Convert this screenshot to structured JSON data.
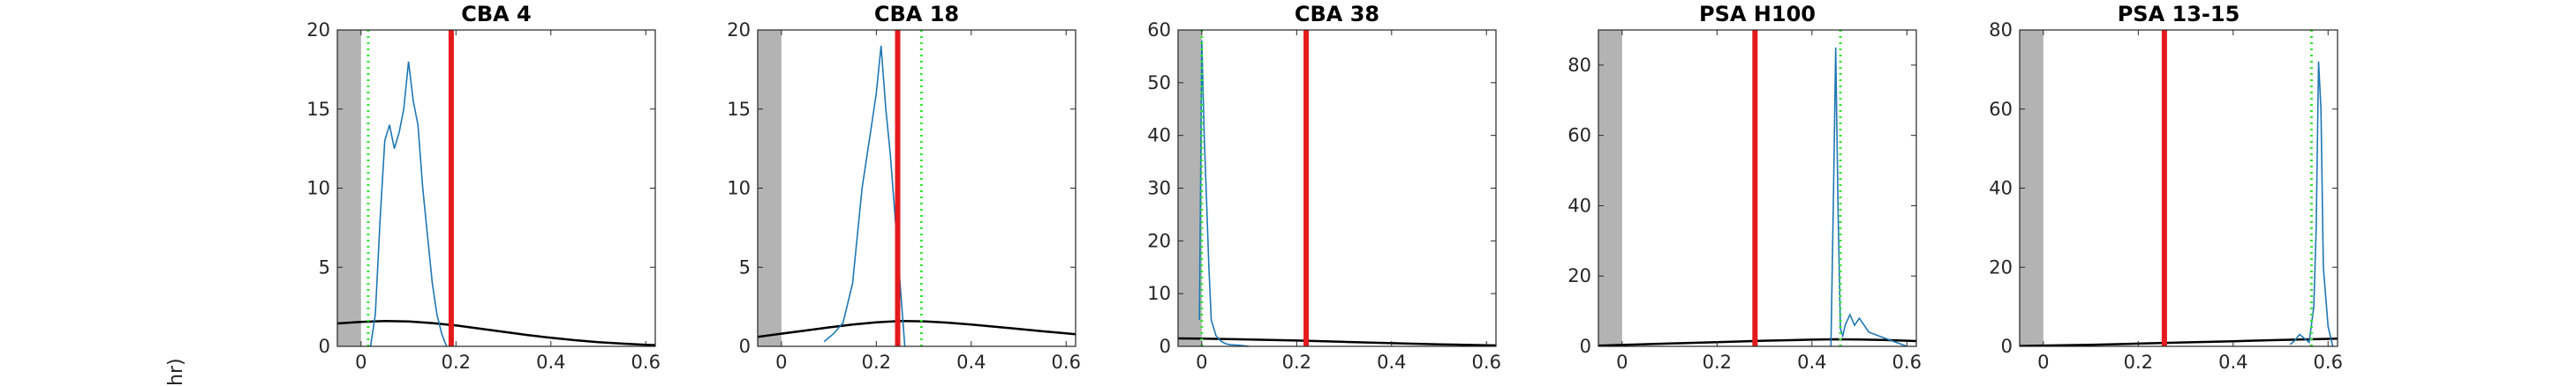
{
  "figure": {
    "ylabel": "hr)"
  },
  "chart_data": [
    {
      "type": "line",
      "title": "CBA 4",
      "xlim": [
        -0.05,
        0.62
      ],
      "ylim": [
        0,
        20
      ],
      "xticks": [
        0,
        0.2,
        0.4,
        0.6
      ],
      "xtick_labels": [
        "0",
        "0.2",
        "0.4",
        "0.6"
      ],
      "yticks": [
        0,
        5,
        10,
        15,
        20
      ],
      "ytick_labels": [
        "0",
        "5",
        "10",
        "15",
        "20"
      ],
      "shaded_region": [
        -0.05,
        0
      ],
      "red_line_x": 0.19,
      "dotted_line_x": 0.015,
      "colors": {
        "histogram": "#1f77b4",
        "red": "#e41a1c",
        "green": "#33e633",
        "curve": "#000000",
        "shade": "#b3b3b3"
      },
      "curve": {
        "x": [
          -0.05,
          0.0,
          0.05,
          0.1,
          0.15,
          0.2,
          0.25,
          0.3,
          0.35,
          0.4,
          0.45,
          0.5,
          0.55,
          0.6,
          0.62
        ],
        "y": [
          1.45,
          1.55,
          1.6,
          1.57,
          1.47,
          1.32,
          1.12,
          0.92,
          0.72,
          0.54,
          0.39,
          0.26,
          0.17,
          0.1,
          0.08
        ]
      },
      "histogram": {
        "x": [
          0.02,
          0.03,
          0.04,
          0.05,
          0.06,
          0.07,
          0.08,
          0.09,
          0.1,
          0.11,
          0.12,
          0.13,
          0.14,
          0.15,
          0.16,
          0.17,
          0.18
        ],
        "y": [
          0,
          2,
          8,
          13,
          14,
          12.5,
          13.5,
          15,
          18,
          15.5,
          14,
          10,
          7,
          4,
          2,
          0.8,
          0
        ]
      }
    },
    {
      "type": "line",
      "title": "CBA 18",
      "xlim": [
        -0.05,
        0.62
      ],
      "ylim": [
        0,
        20
      ],
      "xticks": [
        0,
        0.2,
        0.4,
        0.6
      ],
      "xtick_labels": [
        "0",
        "0.2",
        "0.4",
        "0.6"
      ],
      "yticks": [
        0,
        5,
        10,
        15,
        20
      ],
      "ytick_labels": [
        "0",
        "5",
        "10",
        "15",
        "20"
      ],
      "shaded_region": [
        -0.05,
        0
      ],
      "red_line_x": 0.245,
      "dotted_line_x": 0.295,
      "colors": {
        "histogram": "#1f77b4",
        "red": "#e41a1c",
        "green": "#33e633",
        "curve": "#000000",
        "shade": "#b3b3b3"
      },
      "curve": {
        "x": [
          -0.05,
          0.0,
          0.05,
          0.1,
          0.15,
          0.2,
          0.25,
          0.3,
          0.35,
          0.4,
          0.45,
          0.5,
          0.55,
          0.6,
          0.62
        ],
        "y": [
          0.6,
          0.8,
          1.0,
          1.2,
          1.38,
          1.52,
          1.6,
          1.58,
          1.5,
          1.38,
          1.24,
          1.1,
          0.95,
          0.82,
          0.77
        ]
      },
      "histogram": {
        "x": [
          0.09,
          0.11,
          0.13,
          0.15,
          0.16,
          0.17,
          0.18,
          0.19,
          0.2,
          0.21,
          0.22,
          0.23,
          0.24,
          0.25,
          0.26
        ],
        "y": [
          0.3,
          0.8,
          1.5,
          4,
          7,
          10,
          12,
          14,
          16,
          19,
          15,
          12,
          8,
          4,
          0
        ]
      }
    },
    {
      "type": "line",
      "title": "CBA 38",
      "xlim": [
        -0.05,
        0.62
      ],
      "ylim": [
        0,
        60
      ],
      "xticks": [
        0,
        0.2,
        0.4,
        0.6
      ],
      "xtick_labels": [
        "0",
        "0.2",
        "0.4",
        "0.6"
      ],
      "yticks": [
        0,
        10,
        20,
        30,
        40,
        50,
        60
      ],
      "ytick_labels": [
        "0",
        "10",
        "20",
        "30",
        "40",
        "50",
        "60"
      ],
      "shaded_region": [
        -0.05,
        0
      ],
      "red_line_x": 0.22,
      "dotted_line_x": 0.0,
      "colors": {
        "histogram": "#1f77b4",
        "red": "#e41a1c",
        "green": "#33e633",
        "curve": "#000000",
        "shade": "#b3b3b3"
      },
      "curve": {
        "x": [
          -0.05,
          0.0,
          0.1,
          0.2,
          0.3,
          0.4,
          0.5,
          0.6,
          0.62
        ],
        "y": [
          1.5,
          1.45,
          1.3,
          1.1,
          0.85,
          0.6,
          0.38,
          0.2,
          0.17
        ]
      },
      "histogram": {
        "x": [
          -0.005,
          0.0,
          0.005,
          0.01,
          0.015,
          0.02,
          0.03,
          0.04,
          0.05,
          0.06,
          0.08,
          0.1
        ],
        "y": [
          5,
          58,
          40,
          28,
          15,
          5,
          2,
          1,
          0.5,
          0.3,
          0.2,
          0
        ]
      }
    },
    {
      "type": "line",
      "title": "PSA H100",
      "xlim": [
        -0.05,
        0.62
      ],
      "ylim": [
        0,
        90
      ],
      "xticks": [
        0,
        0.2,
        0.4,
        0.6
      ],
      "xtick_labels": [
        "0",
        "0.2",
        "0.4",
        "0.6"
      ],
      "yticks": [
        0,
        20,
        40,
        60,
        80
      ],
      "ytick_labels": [
        "0",
        "20",
        "40",
        "60",
        "80"
      ],
      "shaded_region": [
        -0.05,
        0
      ],
      "red_line_x": 0.28,
      "dotted_line_x": 0.46,
      "colors": {
        "histogram": "#1f77b4",
        "red": "#e41a1c",
        "green": "#33e633",
        "curve": "#000000",
        "shade": "#b3b3b3"
      },
      "curve": {
        "x": [
          -0.05,
          0.0,
          0.1,
          0.2,
          0.3,
          0.4,
          0.45,
          0.5,
          0.55,
          0.6,
          0.62
        ],
        "y": [
          0.2,
          0.4,
          0.8,
          1.2,
          1.6,
          1.9,
          2.0,
          1.95,
          1.8,
          1.6,
          1.5
        ]
      },
      "histogram": {
        "x": [
          0.44,
          0.445,
          0.45,
          0.455,
          0.46,
          0.465,
          0.47,
          0.48,
          0.49,
          0.5,
          0.52,
          0.54,
          0.56,
          0.58,
          0.6
        ],
        "y": [
          0,
          40,
          85,
          40,
          5,
          3,
          6,
          9,
          6,
          8,
          4,
          3,
          2,
          1,
          0
        ]
      }
    },
    {
      "type": "line",
      "title": "PSA 13-15",
      "xlim": [
        -0.05,
        0.62
      ],
      "ylim": [
        0,
        80
      ],
      "xticks": [
        0,
        0.2,
        0.4,
        0.6
      ],
      "xtick_labels": [
        "0",
        "0.2",
        "0.4",
        "0.6"
      ],
      "yticks": [
        0,
        20,
        40,
        60,
        80
      ],
      "ytick_labels": [
        "0",
        "20",
        "40",
        "60",
        "80"
      ],
      "shaded_region": [
        -0.05,
        0
      ],
      "red_line_x": 0.255,
      "dotted_line_x": 0.565,
      "colors": {
        "histogram": "#1f77b4",
        "red": "#e41a1c",
        "green": "#33e633",
        "curve": "#000000",
        "shade": "#b3b3b3"
      },
      "curve": {
        "x": [
          -0.05,
          0.0,
          0.1,
          0.2,
          0.3,
          0.4,
          0.5,
          0.55,
          0.6,
          0.62
        ],
        "y": [
          0.1,
          0.2,
          0.4,
          0.7,
          1.0,
          1.3,
          1.6,
          1.75,
          1.9,
          1.95
        ]
      },
      "histogram": {
        "x": [
          0.52,
          0.53,
          0.54,
          0.55,
          0.56,
          0.57,
          0.575,
          0.58,
          0.585,
          0.59,
          0.6,
          0.61
        ],
        "y": [
          0.5,
          1.5,
          3,
          2,
          1,
          10,
          30,
          72,
          60,
          20,
          5,
          0
        ]
      }
    }
  ]
}
